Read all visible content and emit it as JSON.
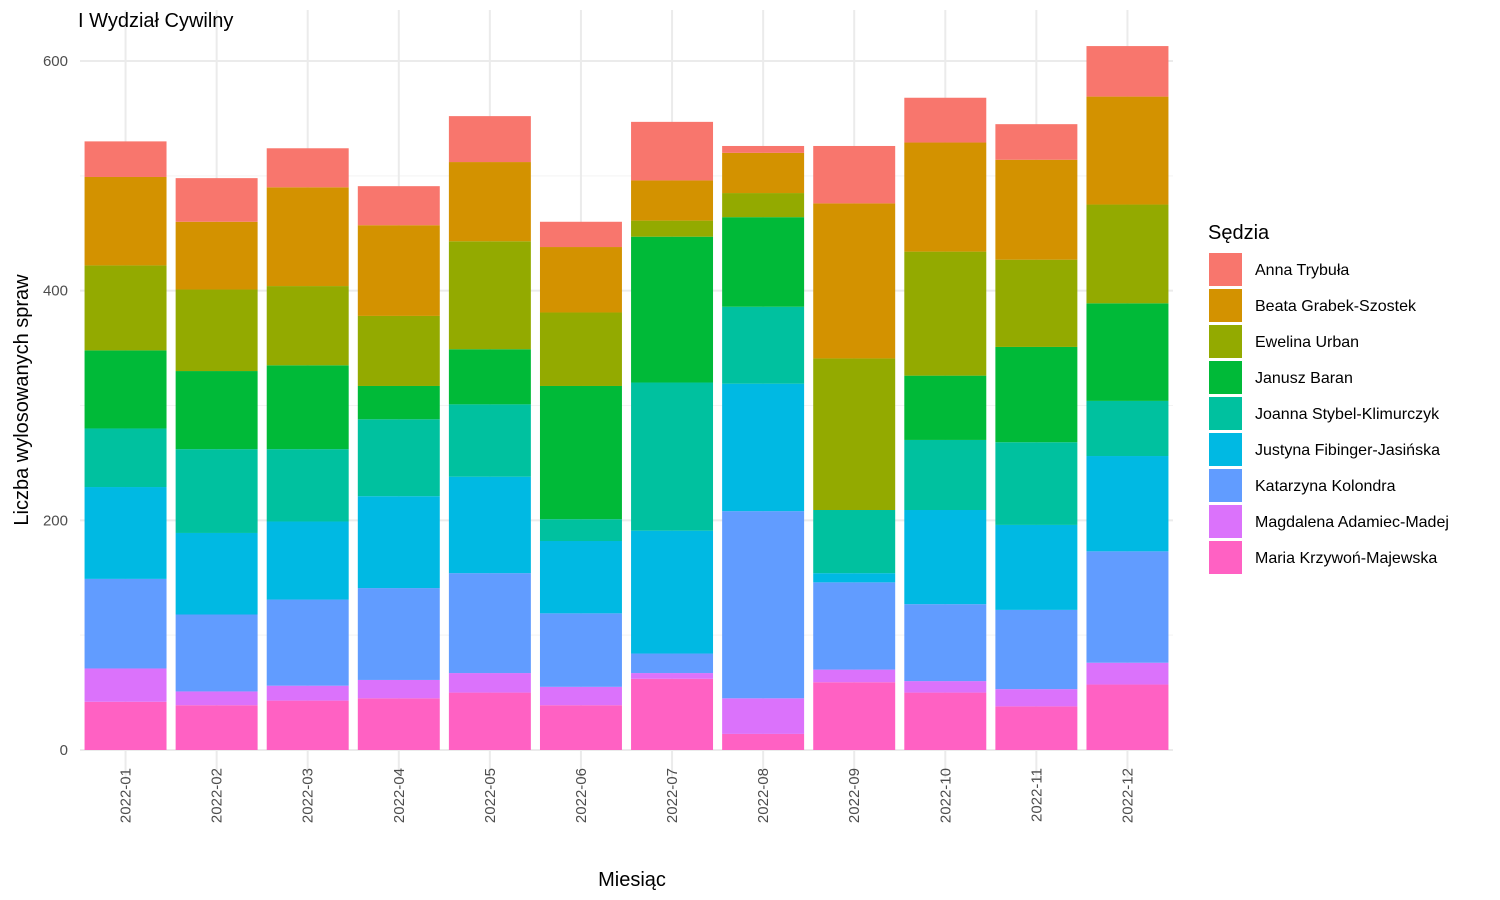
{
  "chart_data": {
    "type": "bar",
    "stacked": true,
    "title": "I Wydział Cywilny",
    "xlabel": "Miesiąc",
    "ylabel": "Liczba wylosowanych spraw",
    "ylim": [
      0,
      620
    ],
    "yticks": [
      0,
      200,
      400,
      600
    ],
    "grid": true,
    "legend_title": "Sędzia",
    "legend_position": "right",
    "categories": [
      "2022-01",
      "2022-02",
      "2022-03",
      "2022-04",
      "2022-05",
      "2022-06",
      "2022-07",
      "2022-08",
      "2022-09",
      "2022-10",
      "2022-11",
      "2022-12"
    ],
    "series": [
      {
        "name": "Anna Trybuła",
        "color": "#F8766D",
        "values": [
          31,
          38,
          34,
          34,
          40,
          22,
          51,
          6,
          50,
          39,
          31,
          44
        ]
      },
      {
        "name": "Beata Grabek-Szostek",
        "color": "#D39200",
        "values": [
          77,
          59,
          86,
          79,
          69,
          57,
          35,
          35,
          135,
          95,
          87,
          94
        ]
      },
      {
        "name": "Ewelina Urban",
        "color": "#93AA00",
        "values": [
          74,
          71,
          69,
          61,
          94,
          64,
          14,
          21,
          132,
          108,
          76,
          86
        ]
      },
      {
        "name": "Janusz Baran",
        "color": "#00BA38",
        "values": [
          68,
          68,
          73,
          29,
          48,
          116,
          127,
          78,
          0,
          56,
          83,
          85
        ]
      },
      {
        "name": "Joanna Stybel-Klimurczyk",
        "color": "#00C19F",
        "values": [
          51,
          73,
          63,
          67,
          63,
          19,
          129,
          67,
          55,
          61,
          72,
          48
        ]
      },
      {
        "name": "Justyna Fibinger-Jasińska",
        "color": "#00B9E3",
        "values": [
          80,
          71,
          68,
          80,
          84,
          63,
          107,
          111,
          8,
          82,
          74,
          83
        ]
      },
      {
        "name": "Katarzyna Kolondra",
        "color": "#619CFF",
        "values": [
          78,
          67,
          75,
          80,
          87,
          64,
          17,
          163,
          76,
          67,
          69,
          97
        ]
      },
      {
        "name": "Magdalena Adamiec-Madej",
        "color": "#DB72FB",
        "values": [
          29,
          12,
          13,
          16,
          17,
          16,
          5,
          31,
          11,
          10,
          15,
          19
        ]
      },
      {
        "name": "Maria Krzywoń-Majewska",
        "color": "#FF61C3",
        "values": [
          42,
          39,
          43,
          45,
          50,
          39,
          62,
          14,
          59,
          50,
          38,
          57
        ]
      }
    ]
  }
}
